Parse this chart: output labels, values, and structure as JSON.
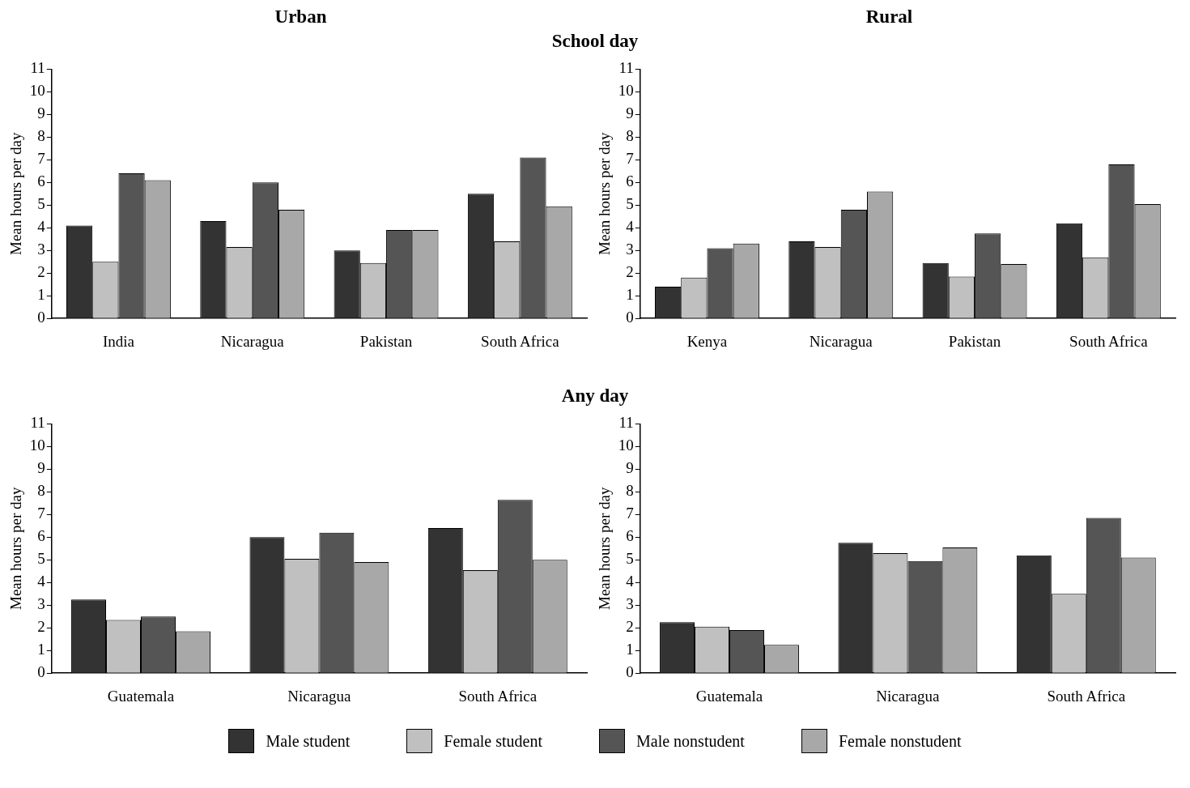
{
  "chart_data": [
    {
      "type": "bar",
      "title": "Urban",
      "subtitle": "School day",
      "ylabel": "Mean hours per day",
      "categories": [
        "India",
        "Nicaragua",
        "Pakistan",
        "South Africa"
      ],
      "ylim": [
        0,
        11
      ],
      "yticks": [
        0,
        1,
        2,
        3,
        4,
        5,
        6,
        7,
        8,
        9,
        10,
        11
      ],
      "grid": false,
      "legend": "bottom",
      "series": [
        {
          "name": "Male student",
          "color": "#333333",
          "values": [
            4.1,
            4.3,
            3.0,
            5.5
          ]
        },
        {
          "name": "Female student",
          "color": "#c0c0c0",
          "values": [
            2.5,
            3.15,
            2.45,
            3.4
          ]
        },
        {
          "name": "Male nonstudent",
          "color": "#555555",
          "values": [
            6.4,
            6.0,
            3.9,
            7.1
          ]
        },
        {
          "name": "Female nonstudent",
          "color": "#a8a8a8",
          "values": [
            6.1,
            4.8,
            3.9,
            4.95
          ]
        }
      ]
    },
    {
      "type": "bar",
      "title": "Rural",
      "ylabel": "Mean hours per day",
      "categories": [
        "Kenya",
        "Nicaragua",
        "Pakistan",
        "South Africa"
      ],
      "ylim": [
        0,
        11
      ],
      "yticks": [
        0,
        1,
        2,
        3,
        4,
        5,
        6,
        7,
        8,
        9,
        10,
        11
      ],
      "grid": false,
      "series": [
        {
          "color": "#333333",
          "values": [
            1.4,
            3.4,
            2.45,
            4.2
          ]
        },
        {
          "color": "#c0c0c0",
          "values": [
            1.8,
            3.15,
            1.85,
            2.7
          ]
        },
        {
          "color": "#555555",
          "values": [
            3.1,
            4.8,
            3.75,
            6.8
          ]
        },
        {
          "color": "#a8a8a8",
          "values": [
            3.3,
            5.6,
            2.4,
            5.05
          ]
        }
      ]
    },
    {
      "type": "bar",
      "subtitle": "Any day",
      "ylabel": "Mean hours per day",
      "categories": [
        "Guatemala",
        "Nicaragua",
        "South Africa"
      ],
      "ylim": [
        0,
        11
      ],
      "yticks": [
        0,
        1,
        2,
        3,
        4,
        5,
        6,
        7,
        8,
        9,
        10,
        11
      ],
      "grid": false,
      "series": [
        {
          "color": "#333333",
          "values": [
            3.25,
            6.0,
            6.4
          ]
        },
        {
          "color": "#c0c0c0",
          "values": [
            2.35,
            5.05,
            4.55
          ]
        },
        {
          "color": "#555555",
          "values": [
            2.5,
            6.2,
            7.65
          ]
        },
        {
          "color": "#a8a8a8",
          "values": [
            1.85,
            4.9,
            5.0
          ]
        }
      ]
    },
    {
      "type": "bar",
      "ylabel": "Mean hours per day",
      "categories": [
        "Guatemala",
        "Nicaragua",
        "South Africa"
      ],
      "ylim": [
        0,
        11
      ],
      "yticks": [
        0,
        1,
        2,
        3,
        4,
        5,
        6,
        7,
        8,
        9,
        10,
        11
      ],
      "grid": false,
      "series": [
        {
          "color": "#333333",
          "values": [
            2.25,
            5.75,
            5.2
          ]
        },
        {
          "color": "#c0c0c0",
          "values": [
            2.05,
            5.3,
            3.5
          ]
        },
        {
          "color": "#555555",
          "values": [
            1.9,
            4.95,
            6.85
          ]
        },
        {
          "color": "#a8a8a8",
          "values": [
            1.25,
            5.55,
            5.1
          ]
        }
      ]
    }
  ]
}
